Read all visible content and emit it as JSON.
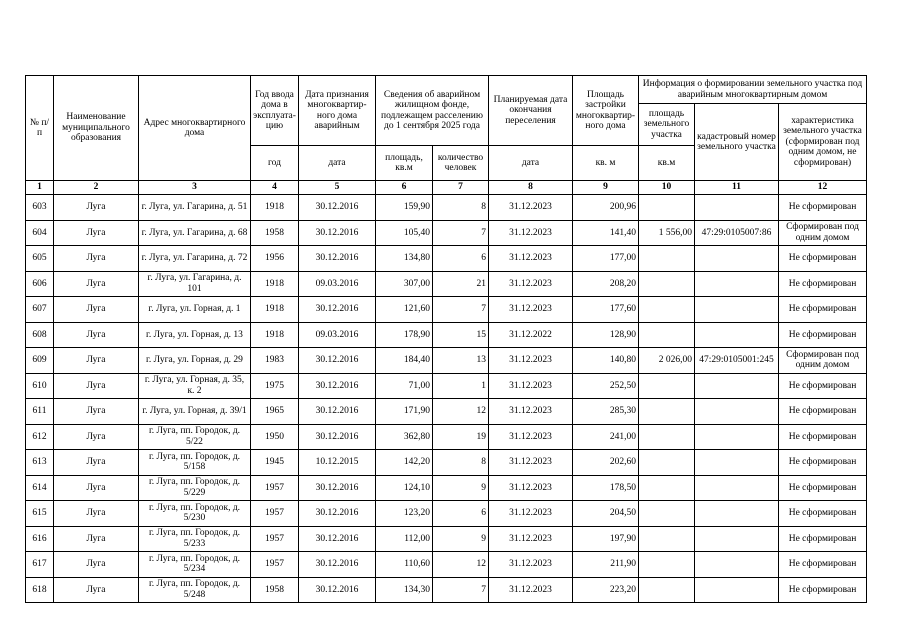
{
  "header": {
    "number": "№ п/п",
    "municipality": "Наименование муниципального образования",
    "address": "Адрес многоквартирного дома",
    "year_built": "Год ввода дома в эксплуата-цию",
    "emergency_date": "Дата признания многоквартир-ного дома аварийным",
    "housing_info": "Сведения об аварийном жилищном фонде, подлежащем расселению до 1 сентября 2025 года",
    "planned_date": "Планируемая дата окончания переселения",
    "building_area": "Площадь застройки многоквартир-ного дома",
    "land_info": "Информация о формировании земельного участка под аварийным многоквартирным домом",
    "land_area": "площадь земельного участка",
    "cadastral": "кадастровый номер земельного участка",
    "land_status": "характеристика земельного участка (сформирован под одним домом, не сформирован)",
    "units": [
      "год",
      "дата",
      "площадь, кв.м",
      "количество человек",
      "дата",
      "кв. м",
      "кв.м"
    ]
  },
  "table": {
    "column_numbers": [
      1,
      2,
      3,
      4,
      5,
      6,
      7,
      8,
      9,
      10,
      11,
      12
    ],
    "rows": [
      [
        "603",
        "Луга",
        "г. Луга, ул. Гагарина, д. 51",
        "1918",
        "30.12.2016",
        "159,90",
        "8",
        "31.12.2023",
        "200,96",
        null,
        null,
        "Не сформирован"
      ],
      [
        "604",
        "Луга",
        "г. Луга, ул. Гагарина, д. 68",
        "1958",
        "30.12.2016",
        "105,40",
        "7",
        "31.12.2023",
        "141,40",
        "1 556,00",
        "47:29:0105007:86",
        "Сформирован под одним домом"
      ],
      [
        "605",
        "Луга",
        "г. Луга, ул. Гагарина, д. 72",
        "1956",
        "30.12.2016",
        "134,80",
        "6",
        "31.12.2023",
        "177,00",
        null,
        null,
        "Не сформирован"
      ],
      [
        "606",
        "Луга",
        "г. Луга, ул. Гагарина, д. 101",
        "1918",
        "09.03.2016",
        "307,00",
        "21",
        "31.12.2023",
        "208,20",
        null,
        null,
        "Не сформирован"
      ],
      [
        "607",
        "Луга",
        "г. Луга, ул. Горная, д. 1",
        "1918",
        "30.12.2016",
        "121,60",
        "7",
        "31.12.2023",
        "177,60",
        null,
        null,
        "Не сформирован"
      ],
      [
        "608",
        "Луга",
        "г. Луга, ул. Горная, д. 13",
        "1918",
        "09.03.2016",
        "178,90",
        "15",
        "31.12.2022",
        "128,90",
        null,
        null,
        "Не сформирован"
      ],
      [
        "609",
        "Луга",
        "г. Луга, ул. Горная, д. 29",
        "1983",
        "30.12.2016",
        "184,40",
        "13",
        "31.12.2023",
        "140,80",
        "2 026,00",
        "47:29:0105001:245",
        "Сформирован под одним домом"
      ],
      [
        "610",
        "Луга",
        "г. Луга, ул. Горная, д. 35, к. 2",
        "1975",
        "30.12.2016",
        "71,00",
        "1",
        "31.12.2023",
        "252,50",
        null,
        null,
        "Не сформирован"
      ],
      [
        "611",
        "Луга",
        "г. Луга, ул. Горная, д. 39/1",
        "1965",
        "30.12.2016",
        "171,90",
        "12",
        "31.12.2023",
        "285,30",
        null,
        null,
        "Не сформирован"
      ],
      [
        "612",
        "Луга",
        "г. Луга, пп. Городок, д. 5/22",
        "1950",
        "30.12.2016",
        "362,80",
        "19",
        "31.12.2023",
        "241,00",
        null,
        null,
        "Не сформирован"
      ],
      [
        "613",
        "Луга",
        "г. Луга, пп. Городок, д. 5/158",
        "1945",
        "10.12.2015",
        "142,20",
        "8",
        "31.12.2023",
        "202,60",
        null,
        null,
        "Не сформирован"
      ],
      [
        "614",
        "Луга",
        "г. Луга, пп. Городок, д. 5/229",
        "1957",
        "30.12.2016",
        "124,10",
        "9",
        "31.12.2023",
        "178,50",
        null,
        null,
        "Не сформирован"
      ],
      [
        "615",
        "Луга",
        "г. Луга, пп. Городок, д. 5/230",
        "1957",
        "30.12.2016",
        "123,20",
        "6",
        "31.12.2023",
        "204,50",
        null,
        null,
        "Не сформирован"
      ],
      [
        "616",
        "Луга",
        "г. Луга, пп. Городок, д. 5/233",
        "1957",
        "30.12.2016",
        "112,00",
        "9",
        "31.12.2023",
        "197,90",
        null,
        null,
        "Не сформирован"
      ],
      [
        "617",
        "Луга",
        "г. Луга, пп. Городок, д. 5/234",
        "1957",
        "30.12.2016",
        "110,60",
        "12",
        "31.12.2023",
        "211,90",
        null,
        null,
        "Не сформирован"
      ],
      [
        "618",
        "Луга",
        "г. Луга, пп. Городок, д. 5/248",
        "1958",
        "30.12.2016",
        "134,30",
        "7",
        "31.12.2023",
        "223,20",
        null,
        null,
        "Не сформирован"
      ]
    ]
  }
}
